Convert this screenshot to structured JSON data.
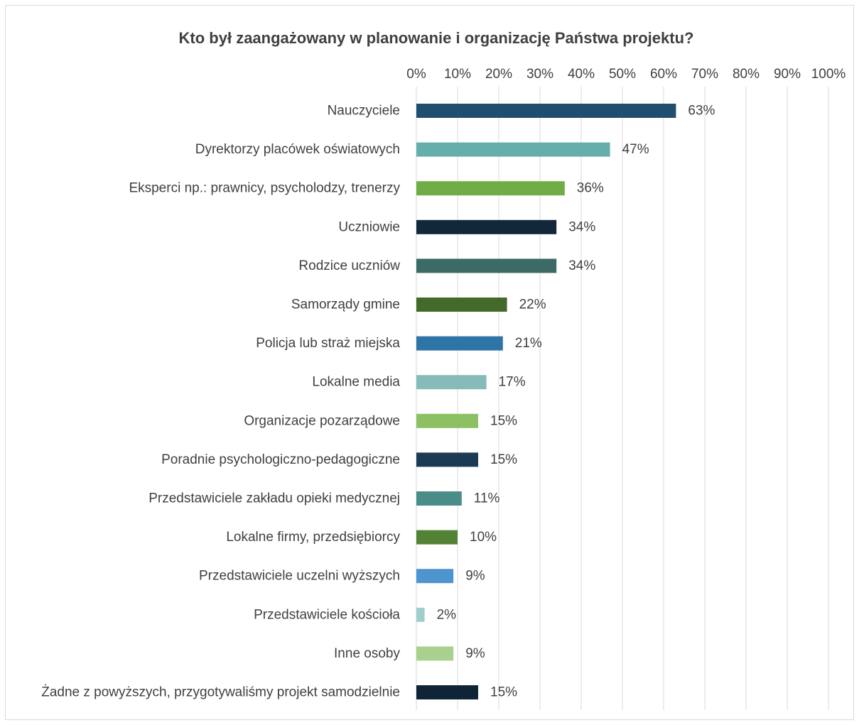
{
  "chart_data": {
    "type": "bar",
    "orientation": "horizontal",
    "title": "Kto był zaangażowany w planowanie i organizację Państwa projektu?",
    "xlabel": "",
    "ylabel": "",
    "xlim": [
      0,
      100
    ],
    "x_ticks": [
      "0%",
      "10%",
      "20%",
      "30%",
      "40%",
      "50%",
      "60%",
      "70%",
      "80%",
      "90%",
      "100%"
    ],
    "x_axis_position": "top",
    "grid": true,
    "categories": [
      "Nauczyciele",
      "Dyrektorzy placówek oświatowych",
      "Eksperci np.: prawnicy, psycholodzy, trenerzy",
      "Uczniowie",
      "Rodzice uczniów",
      "Samorządy gmine",
      "Policja lub straż miejska",
      "Lokalne media",
      "Organizacje pozarządowe",
      "Poradnie psychologiczno-pedagogiczne",
      "Przedstawiciele zakładu opieki medycznej",
      "Lokalne firmy, przedsiębiorcy",
      "Przedstawiciele uczelni wyższych",
      "Przedstawiciele kościoła",
      "Inne osoby",
      "Żadne z powyższych, przygotywaliśmy projekt samodzielnie"
    ],
    "values": [
      63,
      47,
      36,
      34,
      34,
      22,
      21,
      17,
      15,
      15,
      11,
      10,
      9,
      2,
      9,
      15
    ],
    "value_labels": [
      "63%",
      "47%",
      "36%",
      "34%",
      "34%",
      "22%",
      "21%",
      "17%",
      "15%",
      "15%",
      "11%",
      "10%",
      "9%",
      "2%",
      "9%",
      "15%"
    ],
    "colors": [
      "#1f4e6e",
      "#66aeac",
      "#70ad47",
      "#12283a",
      "#3c6a66",
      "#436a2b",
      "#2e74a6",
      "#85bcb9",
      "#8dc063",
      "#1b3a54",
      "#4a8c88",
      "#548235",
      "#4e95cf",
      "#9fcecc",
      "#a9d08e",
      "#0f2436"
    ],
    "legend": "none"
  }
}
